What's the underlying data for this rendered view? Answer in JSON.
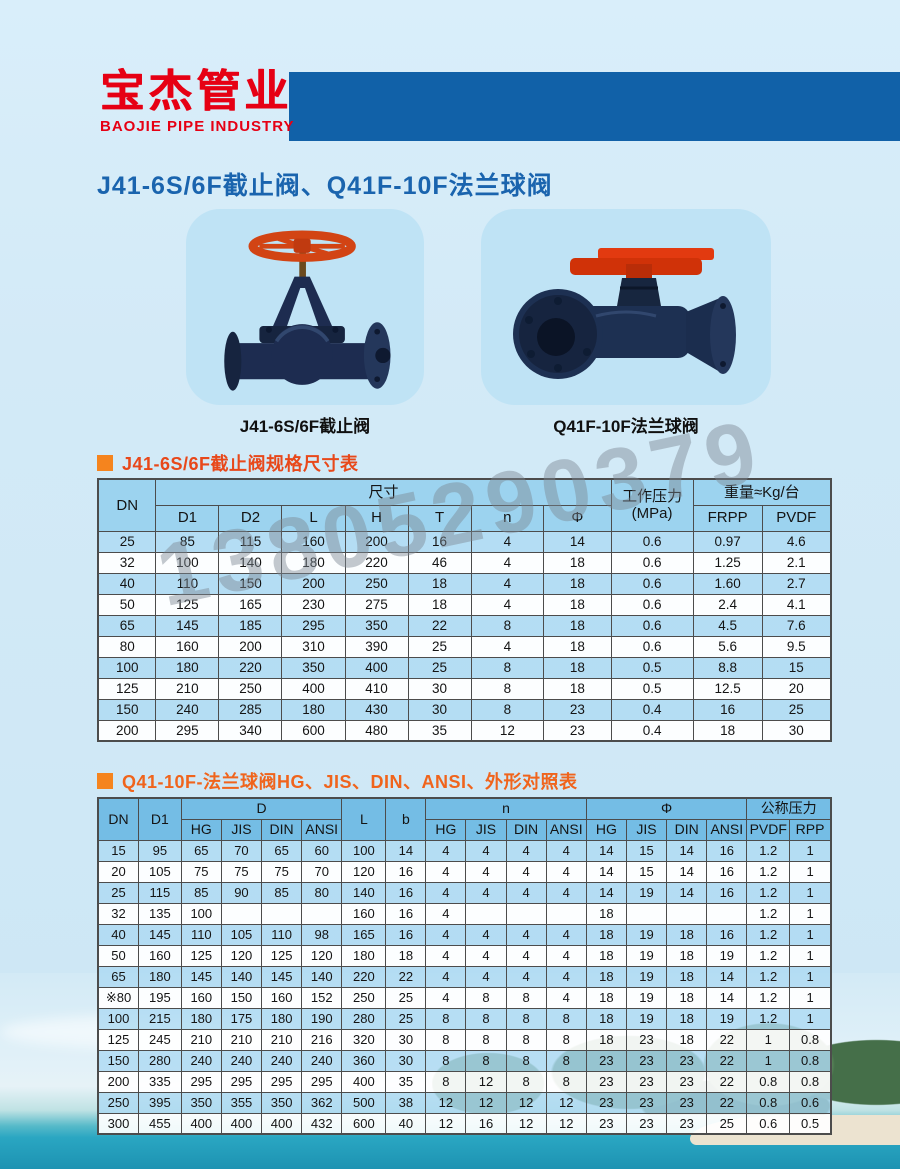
{
  "colors": {
    "brand_red": "#e60012",
    "header_bar_blue": "#1161a8",
    "page_title_blue": "#1a64ae",
    "section_title_orange": "#ee5518",
    "bullet_orange": "#f5841e",
    "table1_header_bg": "#9cd3ef",
    "table2_header_bg": "#74bde5",
    "row_alt_blue": "#add9f2",
    "watermark_gray": "#7d8893",
    "sea_teal": "#2aa6c2"
  },
  "brand": {
    "name_cn": "宝杰管业",
    "name_en": "BAOJIE PIPE INDUSTRY"
  },
  "page_title": "J41-6S/6F截止阀、Q41F-10F法兰球阀",
  "watermark": "13805290379",
  "products": [
    {
      "caption": "J41-6S/6F截止阀"
    },
    {
      "caption": "Q41F-10F法兰球阀"
    }
  ],
  "table1": {
    "title": "J41-6S/6F截止阀规格尺寸表",
    "header_row1": [
      {
        "label": "DN",
        "rowspan": 2
      },
      {
        "label": "尺寸",
        "colspan": 7
      },
      {
        "label": "工作压力\n(MPa)",
        "rowspan": 2
      },
      {
        "label": "重量≈Kg/台",
        "colspan": 2
      }
    ],
    "header_row2": [
      "D1",
      "D2",
      "L",
      "H",
      "T",
      "n",
      "Φ",
      "FRPP",
      "PVDF"
    ],
    "rows": [
      [
        "25",
        "85",
        "115",
        "160",
        "200",
        "16",
        "4",
        "14",
        "0.6",
        "0.97",
        "4.6"
      ],
      [
        "32",
        "100",
        "140",
        "180",
        "220",
        "46",
        "4",
        "18",
        "0.6",
        "1.25",
        "2.1"
      ],
      [
        "40",
        "110",
        "150",
        "200",
        "250",
        "18",
        "4",
        "18",
        "0.6",
        "1.60",
        "2.7"
      ],
      [
        "50",
        "125",
        "165",
        "230",
        "275",
        "18",
        "4",
        "18",
        "0.6",
        "2.4",
        "4.1"
      ],
      [
        "65",
        "145",
        "185",
        "295",
        "350",
        "22",
        "8",
        "18",
        "0.6",
        "4.5",
        "7.6"
      ],
      [
        "80",
        "160",
        "200",
        "310",
        "390",
        "25",
        "4",
        "18",
        "0.6",
        "5.6",
        "9.5"
      ],
      [
        "100",
        "180",
        "220",
        "350",
        "400",
        "25",
        "8",
        "18",
        "0.5",
        "8.8",
        "15"
      ],
      [
        "125",
        "210",
        "250",
        "400",
        "410",
        "30",
        "8",
        "18",
        "0.5",
        "12.5",
        "20"
      ],
      [
        "150",
        "240",
        "285",
        "180",
        "430",
        "30",
        "8",
        "23",
        "0.4",
        "16",
        "25"
      ],
      [
        "200",
        "295",
        "340",
        "600",
        "480",
        "35",
        "12",
        "23",
        "0.4",
        "18",
        "30"
      ]
    ]
  },
  "table2": {
    "title": "Q41-10F-法兰球阀HG、JIS、DIN、ANSI、外形对照表",
    "header_row1": [
      {
        "label": "DN",
        "rowspan": 2
      },
      {
        "label": "D1",
        "rowspan": 2
      },
      {
        "label": "D",
        "colspan": 4
      },
      {
        "label": "L",
        "rowspan": 2
      },
      {
        "label": "b",
        "rowspan": 2
      },
      {
        "label": "n",
        "colspan": 4
      },
      {
        "label": "Φ",
        "colspan": 4
      },
      {
        "label": "公称压力",
        "colspan": 2
      }
    ],
    "header_row2": [
      "HG",
      "JIS",
      "DIN",
      "ANSI",
      "HG",
      "JIS",
      "DIN",
      "ANSI",
      "HG",
      "JIS",
      "DIN",
      "ANSI",
      "PVDF",
      "RPP"
    ],
    "rows": [
      [
        "15",
        "95",
        "65",
        "70",
        "65",
        "60",
        "100",
        "14",
        "4",
        "4",
        "4",
        "4",
        "14",
        "15",
        "14",
        "16",
        "1.2",
        "1"
      ],
      [
        "20",
        "105",
        "75",
        "75",
        "75",
        "70",
        "120",
        "16",
        "4",
        "4",
        "4",
        "4",
        "14",
        "15",
        "14",
        "16",
        "1.2",
        "1"
      ],
      [
        "25",
        "115",
        "85",
        "90",
        "85",
        "80",
        "140",
        "16",
        "4",
        "4",
        "4",
        "4",
        "14",
        "19",
        "14",
        "16",
        "1.2",
        "1"
      ],
      [
        "32",
        "135",
        "100",
        "",
        "",
        "",
        "160",
        "16",
        "4",
        "",
        "",
        "",
        "18",
        "",
        "",
        "",
        "1.2",
        "1"
      ],
      [
        "40",
        "145",
        "110",
        "105",
        "110",
        "98",
        "165",
        "16",
        "4",
        "4",
        "4",
        "4",
        "18",
        "19",
        "18",
        "16",
        "1.2",
        "1"
      ],
      [
        "50",
        "160",
        "125",
        "120",
        "125",
        "120",
        "180",
        "18",
        "4",
        "4",
        "4",
        "4",
        "18",
        "19",
        "18",
        "19",
        "1.2",
        "1"
      ],
      [
        "65",
        "180",
        "145",
        "140",
        "145",
        "140",
        "220",
        "22",
        "4",
        "4",
        "4",
        "4",
        "18",
        "19",
        "18",
        "14",
        "1.2",
        "1"
      ],
      [
        "※80",
        "195",
        "160",
        "150",
        "160",
        "152",
        "250",
        "25",
        "4",
        "8",
        "8",
        "4",
        "18",
        "19",
        "18",
        "14",
        "1.2",
        "1"
      ],
      [
        "100",
        "215",
        "180",
        "175",
        "180",
        "190",
        "280",
        "25",
        "8",
        "8",
        "8",
        "8",
        "18",
        "19",
        "18",
        "19",
        "1.2",
        "1"
      ],
      [
        "125",
        "245",
        "210",
        "210",
        "210",
        "216",
        "320",
        "30",
        "8",
        "8",
        "8",
        "8",
        "18",
        "23",
        "18",
        "22",
        "1",
        "0.8"
      ],
      [
        "150",
        "280",
        "240",
        "240",
        "240",
        "240",
        "360",
        "30",
        "8",
        "8",
        "8",
        "8",
        "23",
        "23",
        "23",
        "22",
        "1",
        "0.8"
      ],
      [
        "200",
        "335",
        "295",
        "295",
        "295",
        "295",
        "400",
        "35",
        "8",
        "12",
        "8",
        "8",
        "23",
        "23",
        "23",
        "22",
        "0.8",
        "0.8"
      ],
      [
        "250",
        "395",
        "350",
        "355",
        "350",
        "362",
        "500",
        "38",
        "12",
        "12",
        "12",
        "12",
        "23",
        "23",
        "23",
        "22",
        "0.8",
        "0.6"
      ],
      [
        "300",
        "455",
        "400",
        "400",
        "400",
        "432",
        "600",
        "40",
        "12",
        "16",
        "12",
        "12",
        "23",
        "23",
        "23",
        "25",
        "0.6",
        "0.5"
      ]
    ]
  }
}
